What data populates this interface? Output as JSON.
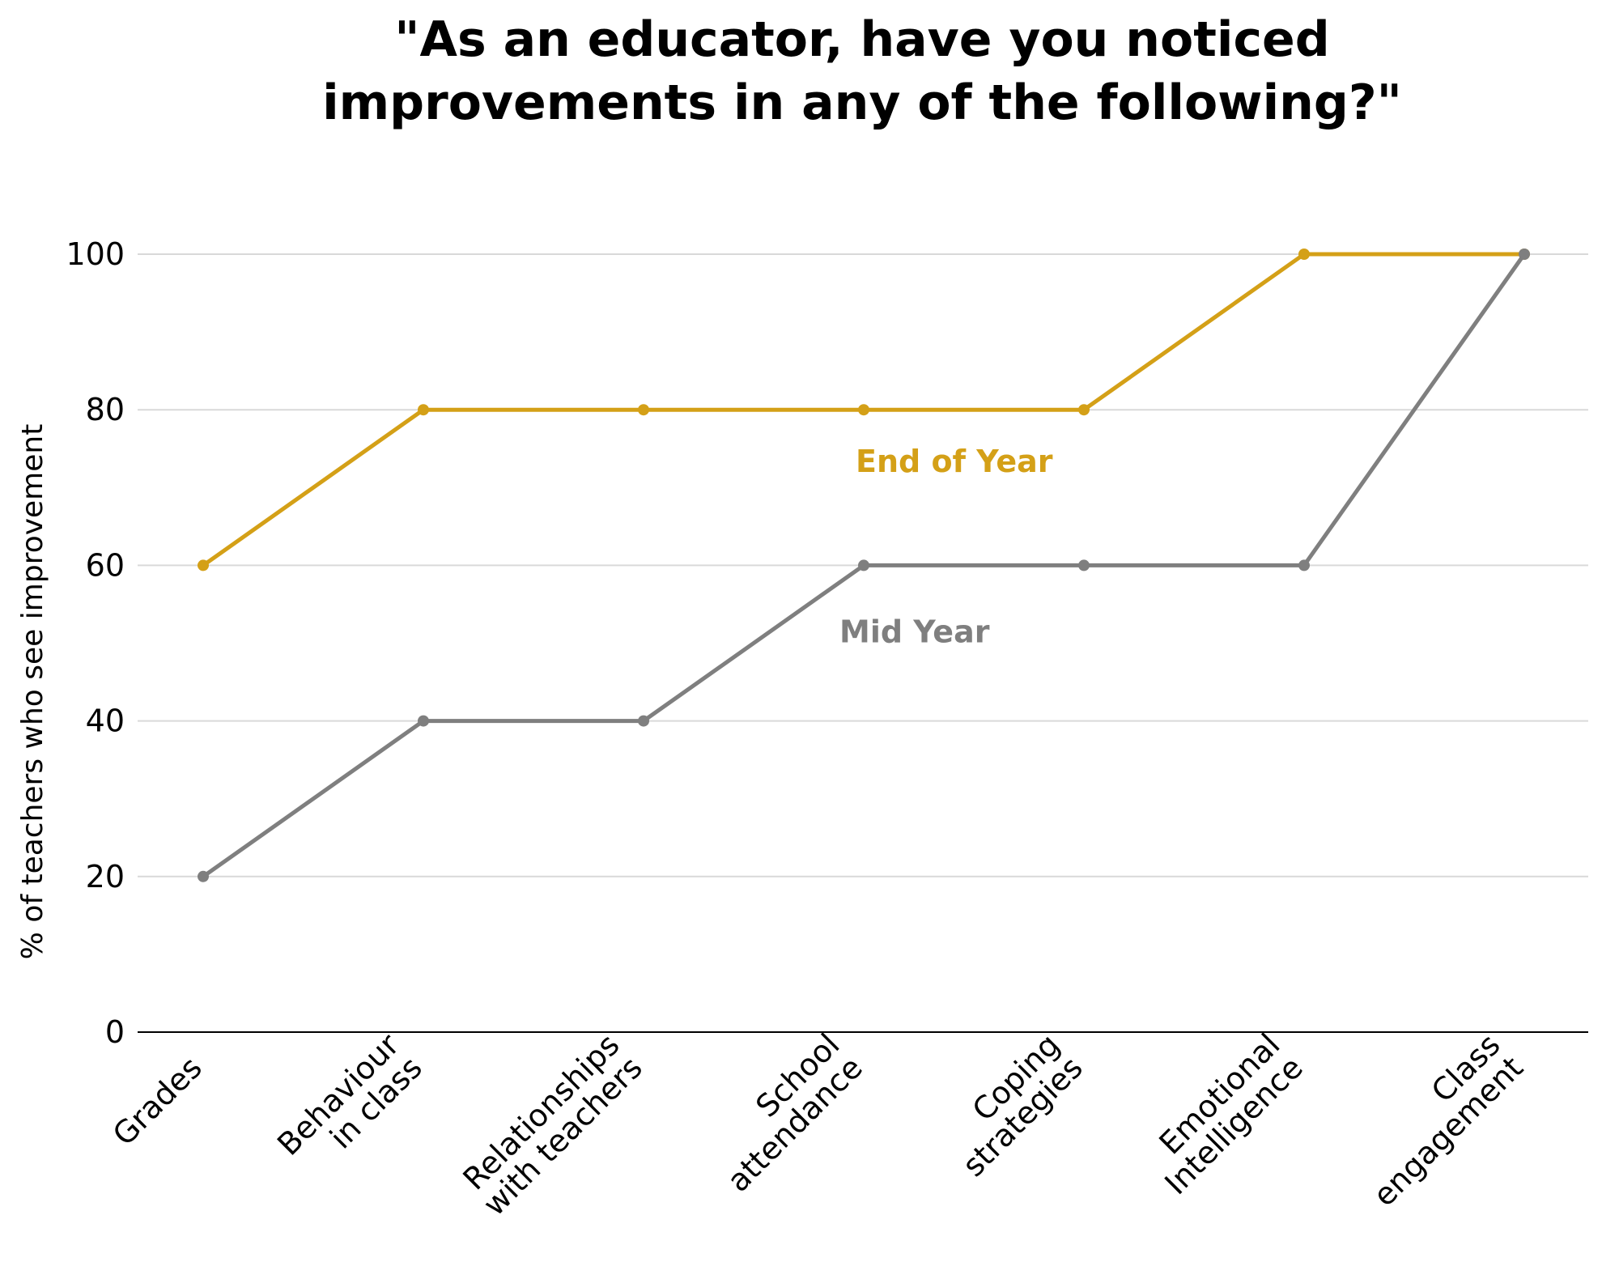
{
  "chart_data": {
    "type": "line",
    "title_lines": [
      "\"As an educator, have you noticed",
      "improvements in any of the following?\""
    ],
    "ylabel": "% of teachers who see improvement",
    "xlabel": "",
    "ylim": [
      0,
      100
    ],
    "yticks": [
      0,
      20,
      40,
      60,
      80,
      100
    ],
    "grid": true,
    "categories": [
      [
        "Grades"
      ],
      [
        "Behaviour",
        "in class"
      ],
      [
        "Relationships",
        "with teachers"
      ],
      [
        "School",
        "attendance"
      ],
      [
        "Coping",
        "strategies"
      ],
      [
        "Emotional",
        "Intelligence"
      ],
      [
        "Class",
        "engagement"
      ]
    ],
    "series": [
      {
        "name": "End of Year",
        "color": "#d4a017",
        "values": [
          60,
          80,
          80,
          80,
          80,
          100,
          100
        ]
      },
      {
        "name": "Mid Year",
        "color": "#7f7f7f",
        "values": [
          20,
          40,
          40,
          60,
          60,
          60,
          100
        ]
      }
    ],
    "colors": {
      "grid": "#d9d9d9",
      "axis": "#000000"
    }
  }
}
